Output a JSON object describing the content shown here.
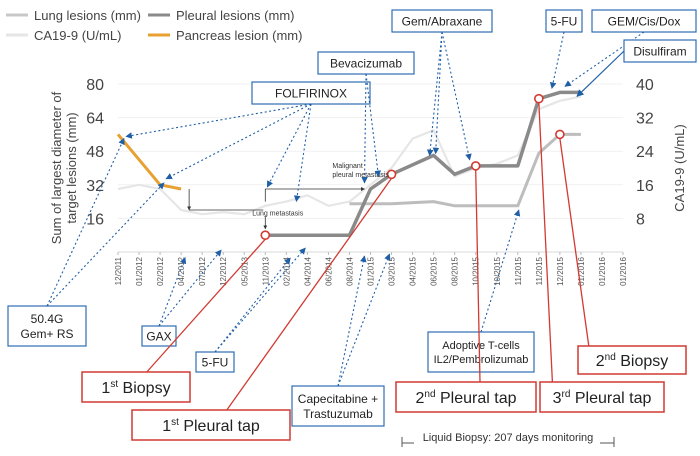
{
  "chart_data": {
    "type": "line",
    "legend": {
      "placement": "top-left",
      "items": [
        {
          "label": "Lung lesions (mm)",
          "color": "#c8c8c8"
        },
        {
          "label": "Pleural lesions (mm)",
          "color": "#8a8a8a"
        },
        {
          "label": "CA19-9 (U/mL)",
          "color": "#e6e6e6"
        },
        {
          "label": "Pancreas lesion (mm)",
          "color": "#e8a030"
        }
      ]
    },
    "ylabel_left": "Sum of largest diameter of target lesions (mm)",
    "ylabel_right": "CA19-9 (U/mL)",
    "yticks_left": [
      "16",
      "32",
      "48",
      "64",
      "80"
    ],
    "yticks_right": [
      "8",
      "16",
      "24",
      "32",
      "40"
    ],
    "ylim_left": [
      0,
      80
    ],
    "ylim_right": [
      0,
      40
    ],
    "x_dates": [
      "12/2011",
      "01/2012",
      "02/2012",
      "04/2012",
      "07/2012",
      "12/2012",
      "05/2013",
      "11/2013",
      "02/2014",
      "04/2014",
      "06/2014",
      "08/2014",
      "01/2015",
      "03/2015",
      "04/2015",
      "06/2015",
      "08/2015",
      "10/2015",
      "10/2015",
      "11/2015",
      "11/2015",
      "12/2015",
      "01/2016",
      "01/2016",
      "01/2016"
    ],
    "series": [
      {
        "key": "pancreas",
        "color": "#e8a030",
        "points": [
          [
            0,
            56
          ],
          [
            2,
            32
          ],
          [
            3,
            30
          ]
        ]
      },
      {
        "key": "pleural",
        "color": "#8a8a8a",
        "points": [
          [
            7,
            8
          ],
          [
            11,
            8
          ],
          [
            12,
            30
          ],
          [
            13,
            37
          ],
          [
            15,
            46
          ],
          [
            16,
            37
          ],
          [
            17,
            41
          ],
          [
            18,
            41
          ],
          [
            19,
            41
          ],
          [
            20,
            73
          ],
          [
            21,
            76
          ],
          [
            22,
            76
          ]
        ]
      },
      {
        "key": "lung",
        "color": "#bdbdbd",
        "points": [
          [
            11,
            23
          ],
          [
            12,
            23
          ],
          [
            13,
            23
          ],
          [
            15,
            24
          ],
          [
            16,
            22
          ],
          [
            17,
            22
          ],
          [
            18,
            22
          ],
          [
            19,
            22
          ],
          [
            20,
            47
          ],
          [
            21,
            56
          ],
          [
            22,
            56
          ]
        ]
      },
      {
        "key": "ca199",
        "color": "#e6e6e6",
        "points": [
          [
            0,
            30
          ],
          [
            1,
            32
          ],
          [
            2,
            30
          ],
          [
            3,
            20
          ],
          [
            4,
            18
          ],
          [
            5,
            19
          ],
          [
            6,
            18
          ],
          [
            7,
            22
          ],
          [
            8,
            24
          ],
          [
            9,
            27
          ],
          [
            10,
            22
          ],
          [
            11,
            24
          ],
          [
            12,
            32
          ],
          [
            13,
            40
          ],
          [
            14,
            54
          ],
          [
            15,
            58
          ],
          [
            16,
            36
          ],
          [
            17,
            40
          ],
          [
            18,
            42
          ],
          [
            19,
            46
          ],
          [
            20,
            68
          ],
          [
            21,
            72
          ],
          [
            22,
            74
          ]
        ]
      }
    ],
    "dates_of_interest": [
      {
        "x": 13,
        "y": 37
      },
      {
        "x": 17,
        "y": 41
      },
      {
        "x": 20,
        "y": 73
      },
      {
        "x": 21,
        "y": 56
      },
      {
        "x": 7,
        "y": 8
      }
    ],
    "inline_annotations": {
      "malignant": "Malignant\npleural metastasis",
      "lung_met": "Lung metastasis"
    },
    "treatments": [
      {
        "key": "rs",
        "text": "50.4G\nGem+ RS"
      },
      {
        "key": "gax",
        "text": "GAX"
      },
      {
        "key": "fu1",
        "text": "5-FU"
      },
      {
        "key": "folfirinox",
        "text": "FOLFIRINOX"
      },
      {
        "key": "bev",
        "text": "Bevacizumab"
      },
      {
        "key": "gem",
        "text": "Gem/Abraxane"
      },
      {
        "key": "fu2",
        "text": "5-FU"
      },
      {
        "key": "gcd",
        "text": "GEM/Cis/Dox"
      },
      {
        "key": "dis",
        "text": "Disulfiram"
      },
      {
        "key": "cap",
        "text": "Capecitabine +\nTrastuzumab"
      },
      {
        "key": "adopt",
        "text": "Adoptive T-cells\nIL2/Pembrolizumab"
      }
    ],
    "events": [
      {
        "key": "b1",
        "text": "1st Biopsy",
        "main": "1",
        "sup": "st",
        "rest": " Biopsy"
      },
      {
        "key": "p1",
        "text": "1st Pleural tap",
        "main": "1",
        "sup": "st",
        "rest": " Pleural tap"
      },
      {
        "key": "p2",
        "text": "2nd Pleural tap",
        "main": "2",
        "sup": "nd",
        "rest": " Pleural tap"
      },
      {
        "key": "p3",
        "text": "3rd Pleural tap",
        "main": "3",
        "sup": "rd",
        "rest": " Pleural tap"
      },
      {
        "key": "b2",
        "text": "2nd Biopsy",
        "main": "2",
        "sup": "nd",
        "rest": " Biopsy"
      }
    ],
    "footnote": "Liquid Biopsy: 207 days monitoring"
  }
}
